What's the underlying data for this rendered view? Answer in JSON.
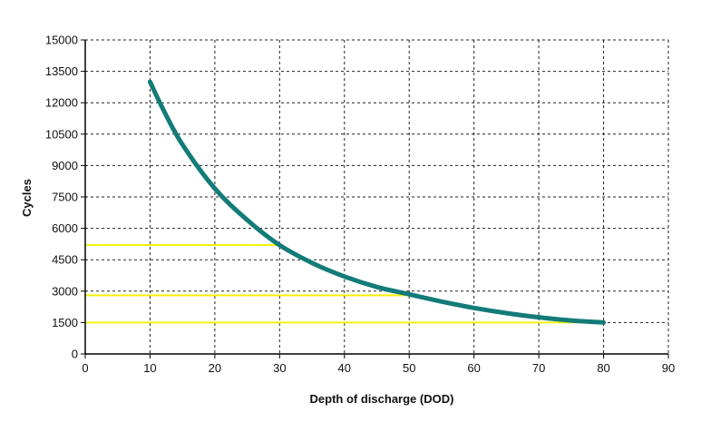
{
  "chart_data": {
    "type": "line",
    "title": "",
    "xlabel": "Depth of discharge (DOD)",
    "ylabel": "Cycles",
    "xlim": [
      0,
      90
    ],
    "ylim": [
      0,
      15000
    ],
    "x_ticks": [
      0,
      10,
      20,
      30,
      40,
      50,
      60,
      70,
      80,
      90
    ],
    "y_ticks": [
      0,
      1500,
      3000,
      4500,
      6000,
      7500,
      9000,
      10500,
      12000,
      13500,
      15000
    ],
    "grid": true,
    "grid_style": "dashed",
    "legend": "none",
    "series": [
      {
        "color": "#137b78",
        "x": [
          10,
          12,
          15,
          20,
          25,
          30,
          35,
          40,
          45,
          50,
          55,
          60,
          65,
          70,
          75,
          80
        ],
        "values": [
          13000,
          11700,
          10000,
          7900,
          6400,
          5200,
          4350,
          3700,
          3200,
          2850,
          2500,
          2200,
          1950,
          1750,
          1600,
          1500
        ]
      }
    ],
    "reference_lines": [
      {
        "color": "#f2f20a",
        "x_end": 30,
        "y": 5200
      },
      {
        "color": "#f2f20a",
        "x_end": 50,
        "y": 2800
      },
      {
        "color": "#f2f20a",
        "x_end": 80,
        "y": 1500
      }
    ]
  }
}
